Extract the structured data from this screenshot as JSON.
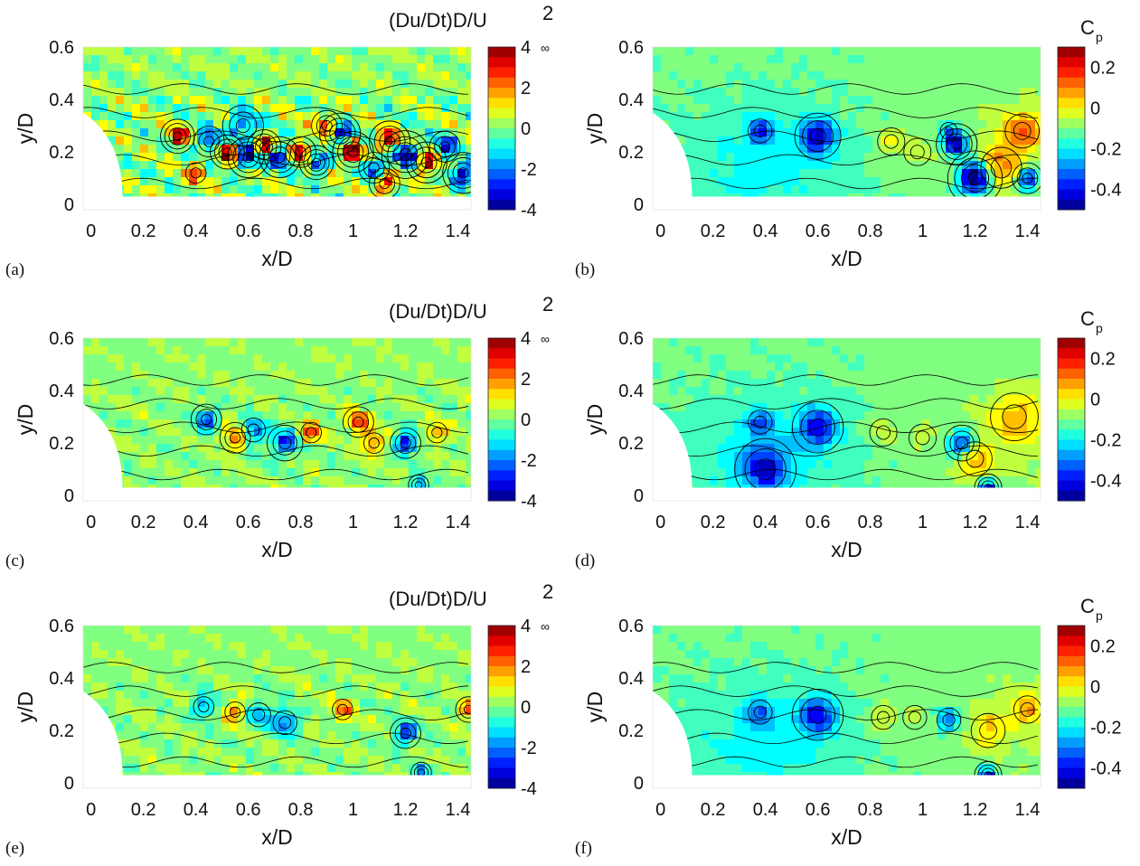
{
  "chart_data": [
    {
      "id": "a",
      "type": "contour",
      "panel_label": "(a)",
      "xlabel": "x/D",
      "ylabel": "y/D",
      "colorbar_title": "(Du/Dt)D/U",
      "colorbar_superscript": "2",
      "colorbar_subscript": "∞",
      "x_ticks": [
        "0",
        "0.2",
        "0.4",
        "0.6",
        "0.8",
        "1",
        "1.2",
        "1.4"
      ],
      "y_ticks": [
        "0",
        "0.2",
        "0.4",
        "0.6"
      ],
      "colorbar_ticks": [
        "4",
        "2",
        "0",
        "-2",
        "-4"
      ],
      "xlim": [
        -0.03,
        1.45
      ],
      "ylim": [
        -0.02,
        0.6
      ],
      "clim": [
        -4,
        4
      ],
      "blobs": [
        {
          "x": 0.33,
          "y": 0.26,
          "v": 3.5,
          "s": 0.025
        },
        {
          "x": 0.45,
          "y": 0.24,
          "v": -3,
          "s": 0.03
        },
        {
          "x": 0.52,
          "y": 0.2,
          "v": 3.8,
          "s": 0.025
        },
        {
          "x": 0.6,
          "y": 0.18,
          "v": -4,
          "s": 0.03
        },
        {
          "x": 0.66,
          "y": 0.22,
          "v": 3.6,
          "s": 0.025
        },
        {
          "x": 0.72,
          "y": 0.18,
          "v": -3.5,
          "s": 0.03
        },
        {
          "x": 0.8,
          "y": 0.2,
          "v": 3.4,
          "s": 0.03
        },
        {
          "x": 0.86,
          "y": 0.16,
          "v": -3.8,
          "s": 0.025
        },
        {
          "x": 0.95,
          "y": 0.27,
          "v": -3.5,
          "s": 0.03
        },
        {
          "x": 1.0,
          "y": 0.2,
          "v": 3.6,
          "s": 0.03
        },
        {
          "x": 1.08,
          "y": 0.14,
          "v": -3.2,
          "s": 0.03
        },
        {
          "x": 1.14,
          "y": 0.24,
          "v": 3.8,
          "s": 0.03
        },
        {
          "x": 1.2,
          "y": 0.19,
          "v": -4,
          "s": 0.035
        },
        {
          "x": 1.28,
          "y": 0.16,
          "v": 3.5,
          "s": 0.03
        },
        {
          "x": 1.35,
          "y": 0.22,
          "v": -3,
          "s": 0.03
        },
        {
          "x": 1.42,
          "y": 0.12,
          "v": -4,
          "s": 0.03
        },
        {
          "x": 0.58,
          "y": 0.3,
          "v": -2.5,
          "s": 0.04
        },
        {
          "x": 0.9,
          "y": 0.3,
          "v": 2.5,
          "s": 0.03
        },
        {
          "x": 1.12,
          "y": 0.08,
          "v": 3,
          "s": 0.03
        },
        {
          "x": 0.4,
          "y": 0.12,
          "v": 2,
          "s": 0.03
        }
      ]
    },
    {
      "id": "b",
      "type": "contour",
      "panel_label": "(b)",
      "xlabel": "x/D",
      "ylabel": "y/D",
      "colorbar_title": "C",
      "colorbar_subscript": "p",
      "x_ticks": [
        "0",
        "0.2",
        "0.4",
        "0.6",
        "0.8",
        "1",
        "1.2",
        "1.4"
      ],
      "y_ticks": [
        "0",
        "0.2",
        "0.4",
        "0.6"
      ],
      "colorbar_ticks": [
        "0.2",
        "0",
        "-0.2",
        "-0.4"
      ],
      "xlim": [
        -0.03,
        1.45
      ],
      "ylim": [
        -0.02,
        0.6
      ],
      "clim": [
        -0.5,
        0.3
      ],
      "blobs": [
        {
          "x": 0.38,
          "y": 0.28,
          "v": -0.22,
          "s": 0.035
        },
        {
          "x": 0.6,
          "y": 0.26,
          "v": -0.3,
          "s": 0.045
        },
        {
          "x": 0.88,
          "y": 0.24,
          "v": 0.1,
          "s": 0.04
        },
        {
          "x": 0.98,
          "y": 0.2,
          "v": 0.06,
          "s": 0.04
        },
        {
          "x": 1.13,
          "y": 0.23,
          "v": -0.4,
          "s": 0.03
        },
        {
          "x": 1.2,
          "y": 0.1,
          "v": -0.5,
          "s": 0.04
        },
        {
          "x": 1.3,
          "y": 0.14,
          "v": 0.18,
          "s": 0.06
        },
        {
          "x": 1.4,
          "y": 0.1,
          "v": -0.35,
          "s": 0.03
        },
        {
          "x": 1.38,
          "y": 0.28,
          "v": 0.2,
          "s": 0.05
        },
        {
          "x": 1.1,
          "y": 0.28,
          "v": -0.2,
          "s": 0.025
        }
      ]
    },
    {
      "id": "c",
      "type": "contour",
      "panel_label": "(c)",
      "xlabel": "x/D",
      "ylabel": "y/D",
      "colorbar_title": "(Du/Dt)D/U",
      "colorbar_superscript": "2",
      "colorbar_subscript": "∞",
      "x_ticks": [
        "0",
        "0.2",
        "0.4",
        "0.6",
        "0.8",
        "1",
        "1.2",
        "1.4"
      ],
      "y_ticks": [
        "0",
        "0.2",
        "0.4",
        "0.6"
      ],
      "colorbar_ticks": [
        "4",
        "2",
        "0",
        "-2",
        "-4"
      ],
      "xlim": [
        -0.03,
        1.45
      ],
      "ylim": [
        -0.02,
        0.6
      ],
      "clim": [
        -4,
        4
      ],
      "blobs": [
        {
          "x": 0.44,
          "y": 0.29,
          "v": -2.6,
          "s": 0.03
        },
        {
          "x": 0.55,
          "y": 0.22,
          "v": 2.5,
          "s": 0.03
        },
        {
          "x": 0.62,
          "y": 0.25,
          "v": -2.2,
          "s": 0.035
        },
        {
          "x": 0.74,
          "y": 0.2,
          "v": -2.8,
          "s": 0.035
        },
        {
          "x": 0.84,
          "y": 0.24,
          "v": 2.2,
          "s": 0.03
        },
        {
          "x": 1.02,
          "y": 0.28,
          "v": 2.6,
          "s": 0.03
        },
        {
          "x": 1.08,
          "y": 0.2,
          "v": 2,
          "s": 0.03
        },
        {
          "x": 1.2,
          "y": 0.2,
          "v": -3.4,
          "s": 0.03
        },
        {
          "x": 1.25,
          "y": 0.04,
          "v": -3,
          "s": 0.02
        },
        {
          "x": 1.32,
          "y": 0.24,
          "v": 1.6,
          "s": 0.03
        }
      ]
    },
    {
      "id": "d",
      "type": "contour",
      "panel_label": "(d)",
      "xlabel": "x/D",
      "ylabel": "y/D",
      "colorbar_title": "C",
      "colorbar_subscript": "p",
      "x_ticks": [
        "0",
        "0.2",
        "0.4",
        "0.6",
        "0.8",
        "1",
        "1.2",
        "1.4"
      ],
      "y_ticks": [
        "0",
        "0.2",
        "0.4",
        "0.6"
      ],
      "colorbar_ticks": [
        "0.2",
        "0",
        "-0.2",
        "-0.4"
      ],
      "xlim": [
        -0.03,
        1.45
      ],
      "ylim": [
        -0.02,
        0.6
      ],
      "clim": [
        -0.5,
        0.3
      ],
      "blobs": [
        {
          "x": 0.38,
          "y": 0.28,
          "v": -0.18,
          "s": 0.035
        },
        {
          "x": 0.6,
          "y": 0.26,
          "v": -0.27,
          "s": 0.05
        },
        {
          "x": 0.85,
          "y": 0.24,
          "v": 0.08,
          "s": 0.04
        },
        {
          "x": 1.0,
          "y": 0.22,
          "v": 0.04,
          "s": 0.04
        },
        {
          "x": 1.15,
          "y": 0.2,
          "v": -0.3,
          "s": 0.035
        },
        {
          "x": 1.2,
          "y": 0.14,
          "v": 0.15,
          "s": 0.05
        },
        {
          "x": 1.35,
          "y": 0.3,
          "v": 0.12,
          "s": 0.07
        },
        {
          "x": 0.4,
          "y": 0.1,
          "v": -0.25,
          "s": 0.06
        },
        {
          "x": 1.25,
          "y": 0.03,
          "v": -0.4,
          "s": 0.02
        }
      ]
    },
    {
      "id": "e",
      "type": "contour",
      "panel_label": "(e)",
      "xlabel": "x/D",
      "ylabel": "y/D",
      "colorbar_title": "(Du/Dt)D/U",
      "colorbar_superscript": "2",
      "colorbar_subscript": "∞",
      "x_ticks": [
        "0",
        "0.2",
        "0.4",
        "0.6",
        "0.8",
        "1",
        "1.2",
        "1.4"
      ],
      "y_ticks": [
        "0",
        "0.2",
        "0.4",
        "0.6"
      ],
      "colorbar_ticks": [
        "4",
        "2",
        "0",
        "-2",
        "-4"
      ],
      "xlim": [
        -0.03,
        1.45
      ],
      "ylim": [
        -0.02,
        0.6
      ],
      "clim": [
        -4,
        4
      ],
      "blobs": [
        {
          "x": 0.43,
          "y": 0.29,
          "v": -2.2,
          "s": 0.03
        },
        {
          "x": 0.55,
          "y": 0.27,
          "v": 2,
          "s": 0.03
        },
        {
          "x": 0.64,
          "y": 0.26,
          "v": -1.8,
          "s": 0.035
        },
        {
          "x": 0.74,
          "y": 0.23,
          "v": -2.4,
          "s": 0.035
        },
        {
          "x": 0.96,
          "y": 0.28,
          "v": 1.8,
          "s": 0.03
        },
        {
          "x": 1.2,
          "y": 0.19,
          "v": -3.2,
          "s": 0.03
        },
        {
          "x": 1.26,
          "y": 0.04,
          "v": -2.5,
          "s": 0.02
        },
        {
          "x": 1.44,
          "y": 0.28,
          "v": 2.5,
          "s": 0.025
        }
      ]
    },
    {
      "id": "f",
      "type": "contour",
      "panel_label": "(f)",
      "xlabel": "x/D",
      "ylabel": "y/D",
      "colorbar_title": "C",
      "colorbar_subscript": "p",
      "x_ticks": [
        "0",
        "0.2",
        "0.4",
        "0.6",
        "0.8",
        "1",
        "1.2",
        "1.4"
      ],
      "y_ticks": [
        "0",
        "0.2",
        "0.4",
        "0.6"
      ],
      "colorbar_ticks": [
        "0.2",
        "0",
        "-0.2",
        "-0.4"
      ],
      "xlim": [
        -0.03,
        1.45
      ],
      "ylim": [
        -0.02,
        0.6
      ],
      "clim": [
        -0.5,
        0.3
      ],
      "blobs": [
        {
          "x": 0.38,
          "y": 0.27,
          "v": -0.18,
          "s": 0.035
        },
        {
          "x": 0.6,
          "y": 0.26,
          "v": -0.25,
          "s": 0.05
        },
        {
          "x": 0.85,
          "y": 0.25,
          "v": 0.1,
          "s": 0.035
        },
        {
          "x": 0.97,
          "y": 0.25,
          "v": 0.04,
          "s": 0.035
        },
        {
          "x": 1.1,
          "y": 0.24,
          "v": -0.2,
          "s": 0.035
        },
        {
          "x": 1.25,
          "y": 0.2,
          "v": 0.12,
          "s": 0.05
        },
        {
          "x": 1.4,
          "y": 0.28,
          "v": 0.15,
          "s": 0.04
        },
        {
          "x": 1.25,
          "y": 0.03,
          "v": -0.4,
          "s": 0.02
        }
      ]
    }
  ]
}
